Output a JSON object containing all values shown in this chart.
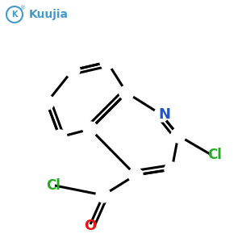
{
  "background_color": "#ffffff",
  "bond_color": "#000000",
  "bond_width": 2.2,
  "atom_labels": {
    "N": {
      "color": "#2255cc",
      "fontsize": 13,
      "fontweight": "bold"
    },
    "Cl": {
      "color": "#22aa22",
      "fontsize": 12,
      "fontweight": "bold"
    },
    "O": {
      "color": "#ee1111",
      "fontsize": 13,
      "fontweight": "bold"
    }
  },
  "logo_text": "Kuujia",
  "logo_color": "#4499cc",
  "logo_fontsize": 10
}
